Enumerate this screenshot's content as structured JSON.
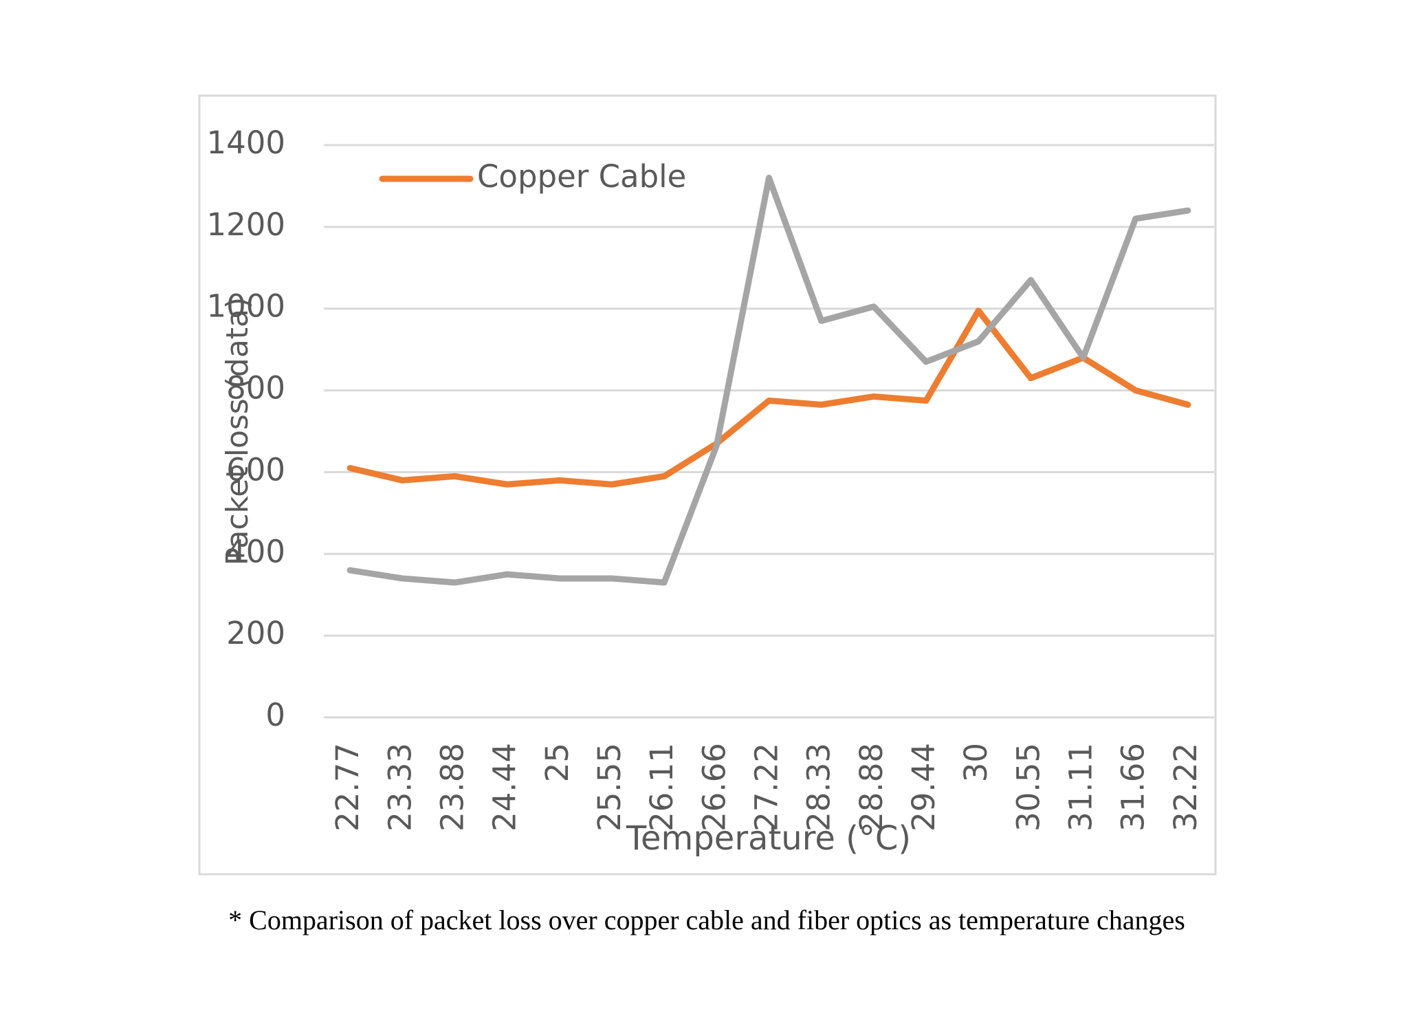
{
  "chart_data": {
    "type": "line",
    "x_label": "Temperature (°C)",
    "y_label": "Packet loss (data)",
    "caption": "* Comparison of packet loss over copper cable and fiber optics as temperature changes",
    "categories": [
      "22.77",
      "23.33",
      "23.88",
      "24.44",
      "25",
      "25.55",
      "26.11",
      "26.66",
      "27.22",
      "28.33",
      "28.88",
      "29.44",
      "30",
      "30.55",
      "31.11",
      "31.66",
      "32.22"
    ],
    "series": [
      {
        "name": "Copper Cable",
        "color": "#ed7d31",
        "values": [
          610,
          580,
          590,
          570,
          580,
          570,
          590,
          670,
          775,
          765,
          785,
          775,
          995,
          830,
          880,
          800,
          765
        ]
      },
      {
        "color": "#a5a5a5",
        "values": [
          360,
          340,
          330,
          350,
          340,
          340,
          330,
          665,
          1320,
          970,
          1005,
          870,
          920,
          1070,
          880,
          1220,
          1240
        ]
      }
    ],
    "ylim": [
      0,
      1400
    ],
    "yticks": [
      0,
      200,
      400,
      600,
      800,
      1000,
      1200,
      1400
    ],
    "grid": true
  }
}
